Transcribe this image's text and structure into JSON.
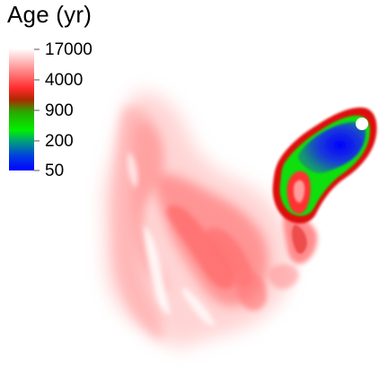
{
  "colorbar": {
    "title": "Age (yr)",
    "ticks": [
      "17000",
      "4000",
      "900",
      "200",
      "50"
    ],
    "scale": "log",
    "range": [
      50,
      17000
    ],
    "colors": {
      "oldest": "#ffffff",
      "old": "#ff7070",
      "mid": "#cc0000",
      "young": "#00ee00",
      "youngest": "#0000ff"
    }
  },
  "marker": {
    "color": "#ffffff",
    "outline": "#0000ff"
  }
}
